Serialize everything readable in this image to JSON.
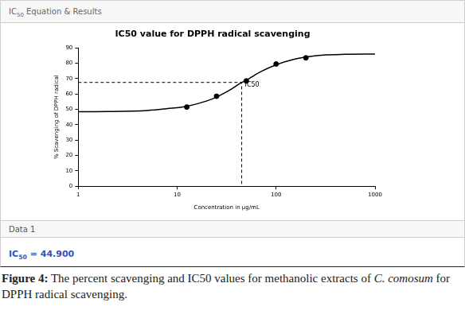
{
  "header": {
    "text": "IC",
    "subscript": "50",
    "rest": "Equation & Results"
  },
  "chart_data": {
    "type": "scatter",
    "title": "IC50 value for DPPH radical scavenging",
    "x_label": "Concentration in µg/mL",
    "y_label": "% Scavenging of DPPH radical",
    "log": "x",
    "grid": false,
    "xlim": [
      1,
      1000
    ],
    "xticks": [
      1,
      10,
      100,
      1000
    ],
    "ylim": [
      0,
      90
    ],
    "yticks": [
      0,
      10,
      20,
      30,
      40,
      50,
      60,
      70,
      80,
      90
    ],
    "series": [
      {
        "name": "Data 1",
        "type": "scatter",
        "marker": "circle",
        "color": "#000000",
        "x": [
          12.5,
          25,
          50,
          100,
          200
        ],
        "values": [
          51.5,
          58.5,
          68.5,
          79.5,
          83.5
        ]
      },
      {
        "type": "line",
        "line_style": "solid",
        "color": "#000000",
        "x": [
          1,
          2,
          5,
          8,
          12.5,
          20,
          25,
          35,
          44.9,
          50,
          70,
          100,
          150,
          200,
          300,
          500,
          1000
        ],
        "values": [
          48.5,
          48.6,
          49.3,
          50.5,
          52,
          55.5,
          58,
          63,
          67.5,
          69,
          74.5,
          79,
          82.5,
          84,
          85.3,
          85.8,
          86
        ]
      }
    ],
    "annotations": [
      {
        "text": "IC50",
        "x": 44.9,
        "y": 67.5,
        "line_style": "dashed"
      }
    ]
  },
  "result": {
    "text": "IC",
    "subscript": "50",
    "separator": "=",
    "value_label": "44.900",
    "color": "#3355bb"
  },
  "caption": {
    "label": "Figure 4:",
    "before": "The percent scavenging and IC50 values for methanolic extracts of",
    "species": "C. comosum",
    "after": "for DPPH radical scavenging."
  }
}
